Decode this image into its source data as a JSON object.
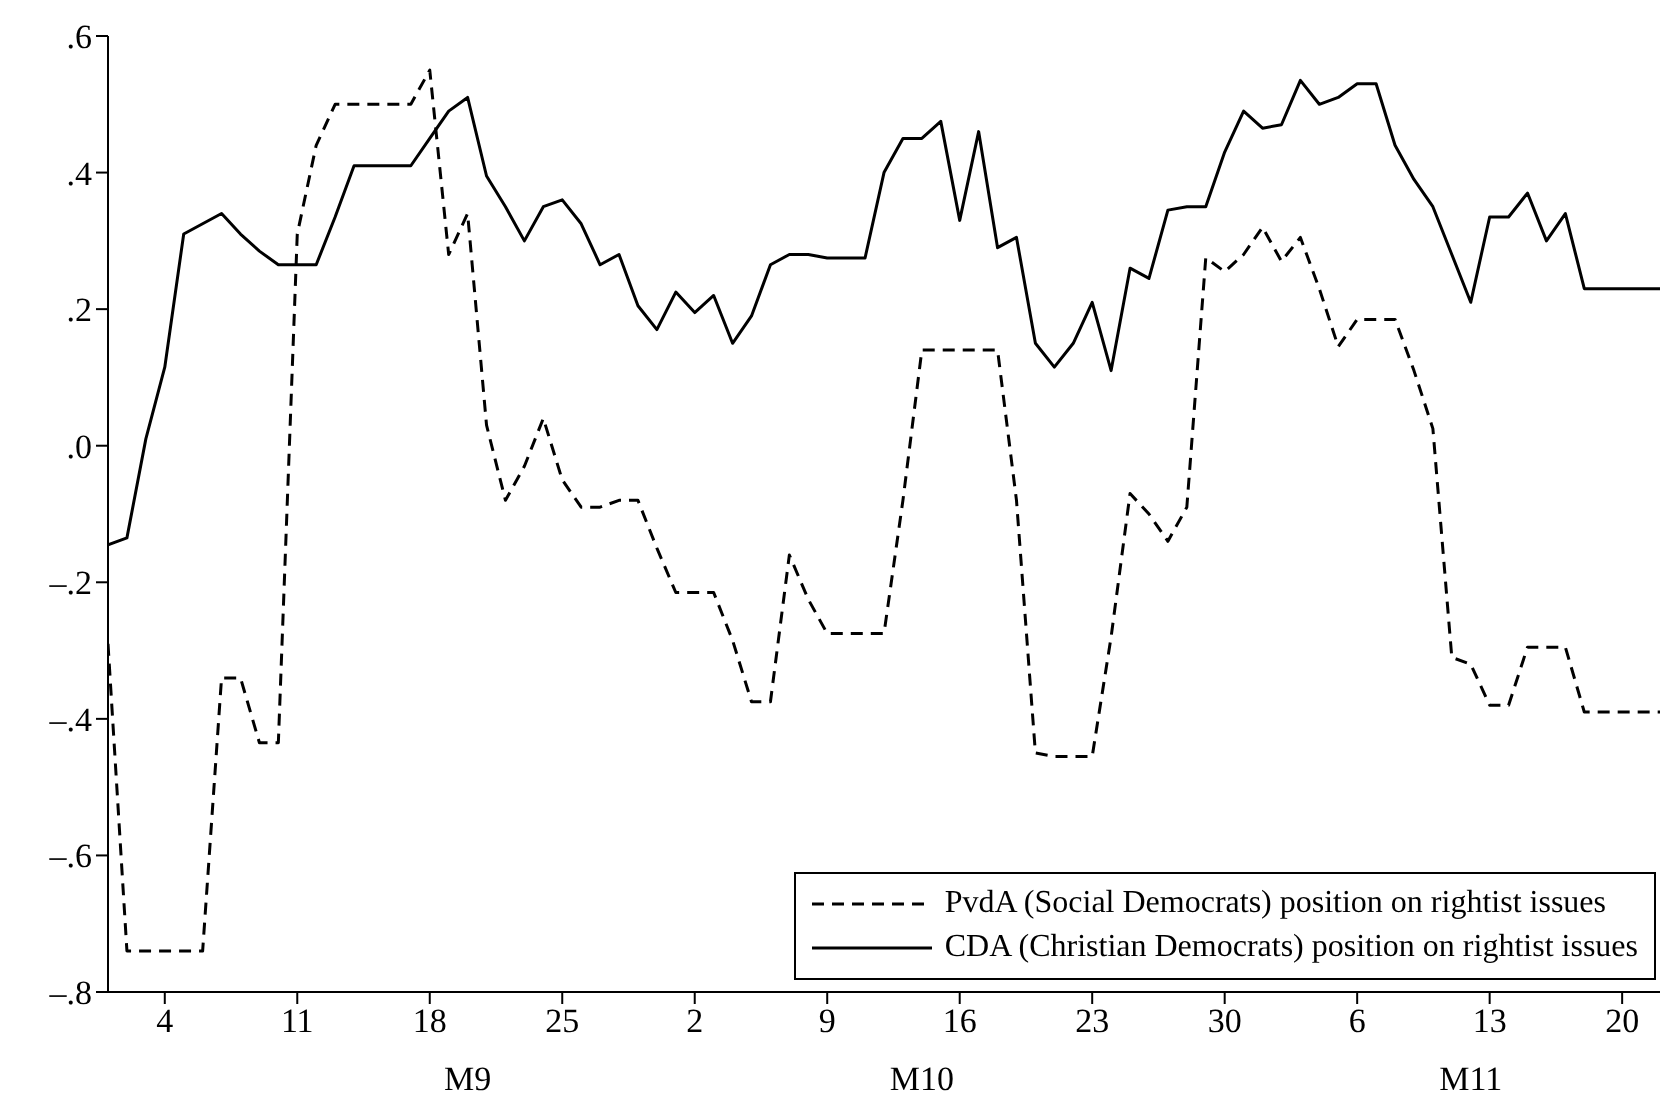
{
  "chart_data": {
    "type": "line",
    "x": [
      "--09-01",
      "--09-02",
      "--09-03",
      "--09-04",
      "--09-05",
      "--09-06",
      "--09-07",
      "--09-08",
      "--09-09",
      "--09-10",
      "--09-11",
      "--09-12",
      "--09-13",
      "--09-14",
      "--09-15",
      "--09-16",
      "--09-17",
      "--09-18",
      "--09-19",
      "--09-20",
      "--09-21",
      "--09-22",
      "--09-23",
      "--09-24",
      "--09-25",
      "--09-26",
      "--09-27",
      "--09-28",
      "--09-29",
      "--09-30",
      "--10-01",
      "--10-02",
      "--10-03",
      "--10-04",
      "--10-05",
      "--10-06",
      "--10-07",
      "--10-08",
      "--10-09",
      "--10-10",
      "--10-11",
      "--10-12",
      "--10-13",
      "--10-14",
      "--10-15",
      "--10-16",
      "--10-17",
      "--10-18",
      "--10-19",
      "--10-20",
      "--10-21",
      "--10-22",
      "--10-23",
      "--10-24",
      "--10-25",
      "--10-26",
      "--10-27",
      "--10-28",
      "--10-29",
      "--10-30",
      "--10-31",
      "--11-01",
      "--11-02",
      "--11-03",
      "--11-04",
      "--11-05",
      "--11-06",
      "--11-07",
      "--11-08",
      "--11-09",
      "--11-10",
      "--11-11",
      "--11-12",
      "--11-13",
      "--11-14",
      "--11-15",
      "--11-16",
      "--11-17",
      "--11-18",
      "--11-19",
      "--11-20",
      "--11-21",
      "--11-22"
    ],
    "series": [
      {
        "name": "PvdA (Social Democrats) position on rightist issues",
        "color": "#000000",
        "line_style": "dashed",
        "values": [
          -0.29,
          -0.74,
          -0.74,
          -0.74,
          -0.74,
          -0.74,
          -0.34,
          -0.34,
          -0.435,
          -0.435,
          0.31,
          0.44,
          0.5,
          0.5,
          0.5,
          0.5,
          0.5,
          0.55,
          0.28,
          0.34,
          0.03,
          -0.08,
          -0.03,
          0.04,
          -0.05,
          -0.09,
          -0.09,
          -0.08,
          -0.08,
          -0.15,
          -0.215,
          -0.215,
          -0.215,
          -0.285,
          -0.375,
          -0.375,
          -0.16,
          -0.225,
          -0.275,
          -0.275,
          -0.275,
          -0.275,
          -0.08,
          0.14,
          0.14,
          0.14,
          0.14,
          0.14,
          -0.08,
          -0.45,
          -0.455,
          -0.455,
          -0.455,
          -0.28,
          -0.07,
          -0.1,
          -0.14,
          -0.09,
          0.275,
          0.255,
          0.28,
          0.32,
          0.27,
          0.305,
          0.23,
          0.145,
          0.185,
          0.185,
          0.185,
          0.11,
          0.025,
          -0.31,
          -0.32,
          -0.38,
          -0.38,
          -0.295,
          -0.295,
          -0.295,
          -0.39,
          -0.39,
          -0.39,
          -0.39,
          -0.39
        ]
      },
      {
        "name": "CDA (Christian Democrats) position on rightist issues",
        "color": "#000000",
        "line_style": "solid",
        "values": [
          -0.145,
          -0.135,
          0.01,
          0.115,
          0.31,
          0.325,
          0.34,
          0.31,
          0.285,
          0.265,
          0.265,
          0.265,
          0.335,
          0.41,
          0.41,
          0.41,
          0.41,
          0.45,
          0.49,
          0.51,
          0.395,
          0.35,
          0.3,
          0.35,
          0.36,
          0.325,
          0.265,
          0.28,
          0.205,
          0.17,
          0.225,
          0.195,
          0.22,
          0.15,
          0.19,
          0.265,
          0.28,
          0.28,
          0.275,
          0.275,
          0.275,
          0.4,
          0.45,
          0.45,
          0.475,
          0.33,
          0.46,
          0.29,
          0.305,
          0.15,
          0.115,
          0.15,
          0.21,
          0.11,
          0.26,
          0.245,
          0.345,
          0.35,
          0.35,
          0.43,
          0.49,
          0.465,
          0.47,
          0.535,
          0.5,
          0.51,
          0.53,
          0.53,
          0.44,
          0.39,
          0.35,
          0.28,
          0.21,
          0.335,
          0.335,
          0.37,
          0.3,
          0.34,
          0.23,
          0.23,
          0.23,
          0.23,
          0.23
        ]
      }
    ],
    "xlim": [
      "--09-01",
      "--11-22"
    ],
    "xticks": [
      {
        "value": "--09-04",
        "label": "4"
      },
      {
        "value": "--09-11",
        "label": "11"
      },
      {
        "value": "--09-18",
        "label": "18"
      },
      {
        "value": "--09-25",
        "label": "25"
      },
      {
        "value": "--10-02",
        "label": "2"
      },
      {
        "value": "--10-09",
        "label": "9"
      },
      {
        "value": "--10-16",
        "label": "16"
      },
      {
        "value": "--10-23",
        "label": "23"
      },
      {
        "value": "--10-30",
        "label": "30"
      },
      {
        "value": "--11-06",
        "label": "6"
      },
      {
        "value": "--11-13",
        "label": "13"
      },
      {
        "value": "--11-20",
        "label": "20"
      }
    ],
    "ylim": [
      -0.8,
      0.6
    ],
    "yticks": [
      {
        "value": -0.8,
        "label": "–.8"
      },
      {
        "value": -0.6,
        "label": "–.6"
      },
      {
        "value": -0.4,
        "label": "–.4"
      },
      {
        "value": -0.2,
        "label": "–.2"
      },
      {
        "value": 0,
        "label": ".0"
      },
      {
        "value": 0.2,
        "label": ".2"
      },
      {
        "value": 0.4,
        "label": ".4"
      },
      {
        "value": 0.6,
        "label": ".6"
      }
    ],
    "x2lim": [
      "--09-01",
      "--11-22"
    ],
    "x2ticks": [
      {
        "value": "--09-20",
        "label": "M9"
      },
      {
        "value": "--10-14",
        "label": "M10"
      },
      {
        "value": "--11-12",
        "label": "M11"
      }
    ],
    "grid": false,
    "legend": "bottom right",
    "marker": "none"
  }
}
